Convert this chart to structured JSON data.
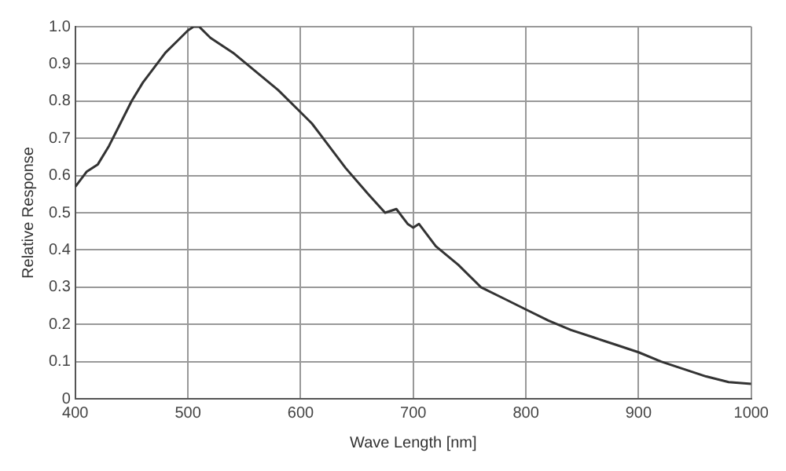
{
  "chart_data": {
    "type": "line",
    "xlabel": "Wave Length [nm]",
    "ylabel": "Relative Response",
    "x": [
      400,
      405,
      410,
      420,
      430,
      440,
      450,
      460,
      470,
      480,
      490,
      500,
      505,
      510,
      520,
      540,
      560,
      580,
      600,
      610,
      620,
      640,
      660,
      675,
      685,
      695,
      700,
      705,
      720,
      740,
      760,
      780,
      800,
      820,
      840,
      860,
      880,
      900,
      920,
      940,
      960,
      980,
      1000
    ],
    "series": [
      {
        "color": "#333333",
        "values": [
          0.57,
          0.59,
          0.61,
          0.63,
          0.68,
          0.74,
          0.8,
          0.85,
          0.89,
          0.93,
          0.96,
          0.99,
          1.0,
          1.0,
          0.97,
          0.93,
          0.88,
          0.83,
          0.77,
          0.74,
          0.7,
          0.62,
          0.55,
          0.5,
          0.51,
          0.47,
          0.46,
          0.47,
          0.41,
          0.36,
          0.3,
          0.27,
          0.24,
          0.21,
          0.185,
          0.165,
          0.145,
          0.125,
          0.1,
          0.08,
          0.06,
          0.045,
          0.04
        ]
      }
    ],
    "xlim": [
      400,
      1000
    ],
    "xticks": [
      400,
      500,
      600,
      700,
      800,
      900,
      1000
    ],
    "ylim": [
      0,
      1
    ],
    "yticks": [
      0,
      0.1,
      0.2,
      0.3,
      0.4,
      0.5,
      0.6,
      0.7,
      0.8,
      0.9,
      {
        "value": 1,
        "label": "1.0"
      }
    ],
    "grid": true,
    "legend": false,
    "marker": "none",
    "line_style": "solid"
  }
}
